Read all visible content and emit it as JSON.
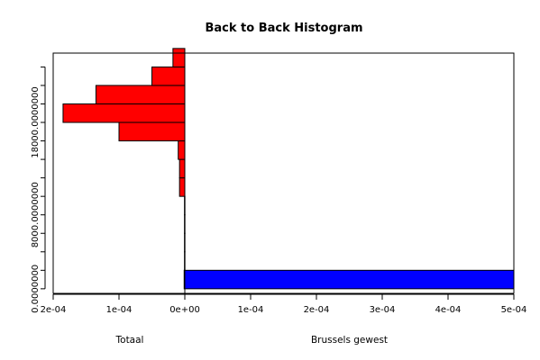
{
  "chart_data": {
    "type": "bar",
    "title": "Back to Back Histogram",
    "orientation": "horizontal",
    "x_ticks": [
      "2e-04",
      "1e-04",
      "0e+00",
      "1e-04",
      "2e-04",
      "3e-04",
      "4e-04",
      "5e-04"
    ],
    "x_tick_values": [
      -0.0002,
      -0.0001,
      0,
      0.0001,
      0.0002,
      0.0003,
      0.0004,
      0.0005
    ],
    "xlim": [
      -0.0002,
      0.0005
    ],
    "y_ticks": [
      "0.0000000",
      "8000.0000000",
      "18000.0000000"
    ],
    "y_tick_values": [
      0,
      8000,
      18000
    ],
    "ylim": [
      -500,
      25500
    ],
    "bin_width": 2000,
    "bin_starts": [
      0,
      2000,
      4000,
      6000,
      8000,
      10000,
      12000,
      14000,
      16000,
      18000,
      20000,
      22000,
      24000
    ],
    "series": [
      {
        "name": "Totaal",
        "side": "left",
        "color": "#ff0000",
        "values": [
          1e-06,
          5e-07,
          5e-07,
          5e-07,
          5e-07,
          8e-06,
          8e-06,
          1e-05,
          0.0001,
          0.000185,
          0.000135,
          5e-05,
          1.8e-05
        ]
      },
      {
        "name": "Brussels gewest",
        "side": "right",
        "color": "#0000ff",
        "values": [
          0.0005,
          0,
          0,
          0,
          0,
          0,
          0,
          0,
          0,
          0,
          0,
          0,
          0
        ]
      }
    ]
  }
}
